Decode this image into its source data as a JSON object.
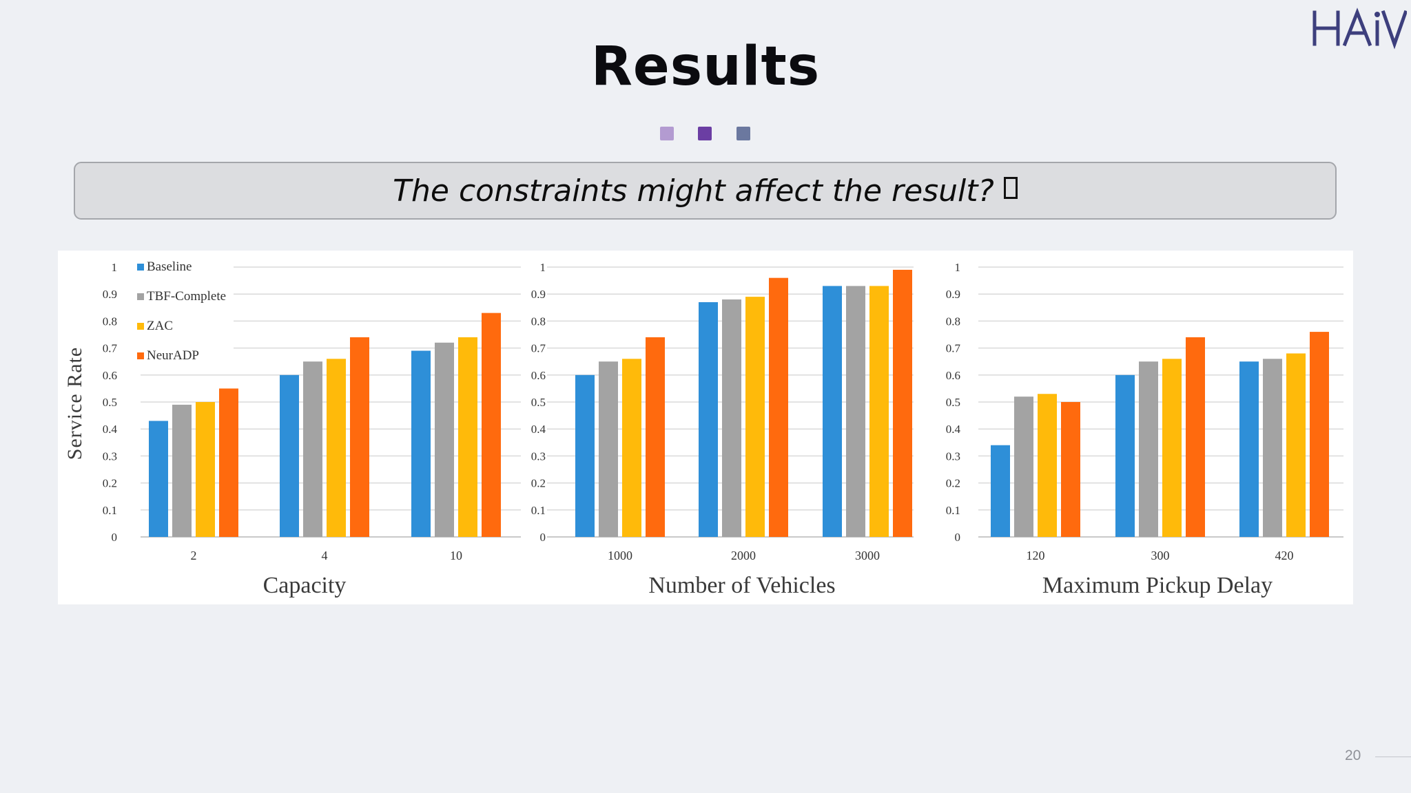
{
  "slide": {
    "logo_text": "HAiV",
    "title": "Results",
    "question": "The constraints might affect the result?",
    "page_number": "20",
    "dot_colors": [
      "#b39bd1",
      "#6b3ea3",
      "#6b789f"
    ]
  },
  "colors": {
    "Baseline": "#2e8fd8",
    "TBF-Complete": "#a3a3a3",
    "ZAC": "#ffba0a",
    "NeurADP": "#ff6a0e",
    "grid": "#dadada",
    "text": "#333333"
  },
  "chart_data": [
    {
      "type": "bar",
      "categories": [
        "2",
        "4",
        "10"
      ],
      "series": [
        {
          "name": "Baseline",
          "values": [
            0.43,
            0.6,
            0.69
          ]
        },
        {
          "name": "TBF-Complete",
          "values": [
            0.49,
            0.65,
            0.72
          ]
        },
        {
          "name": "ZAC",
          "values": [
            0.5,
            0.66,
            0.74
          ]
        },
        {
          "name": "NeurADP",
          "values": [
            0.55,
            0.74,
            0.83
          ]
        }
      ],
      "xlabel": "Capacity",
      "ylabel": "Service Rate",
      "ylim": [
        0,
        1
      ],
      "yticks": [
        "0",
        "0.1",
        "0.2",
        "0.3",
        "0.4",
        "0.5",
        "0.6",
        "0.7",
        "0.8",
        "0.9",
        "1"
      ],
      "grid": true,
      "legend": "top-left"
    },
    {
      "type": "bar",
      "categories": [
        "1000",
        "2000",
        "3000"
      ],
      "series": [
        {
          "name": "Baseline",
          "values": [
            0.6,
            0.87,
            0.93
          ]
        },
        {
          "name": "TBF-Complete",
          "values": [
            0.65,
            0.88,
            0.93
          ]
        },
        {
          "name": "ZAC",
          "values": [
            0.66,
            0.89,
            0.93
          ]
        },
        {
          "name": "NeurADP",
          "values": [
            0.74,
            0.96,
            0.99
          ]
        }
      ],
      "xlabel": "Number of Vehicles",
      "ylim": [
        0,
        1
      ],
      "yticks": [
        "0",
        "0.1",
        "0.2",
        "0.3",
        "0.4",
        "0.5",
        "0.6",
        "0.7",
        "0.8",
        "0.9",
        "1"
      ],
      "grid": true
    },
    {
      "type": "bar",
      "categories": [
        "120",
        "300",
        "420"
      ],
      "series": [
        {
          "name": "Baseline",
          "values": [
            0.34,
            0.6,
            0.65
          ]
        },
        {
          "name": "TBF-Complete",
          "values": [
            0.52,
            0.65,
            0.66
          ]
        },
        {
          "name": "ZAC",
          "values": [
            0.53,
            0.66,
            0.68
          ]
        },
        {
          "name": "NeurADP",
          "values": [
            0.5,
            0.74,
            0.76
          ]
        }
      ],
      "xlabel": "Maximum Pickup Delay",
      "ylim": [
        0,
        1
      ],
      "yticks": [
        "0",
        "0.1",
        "0.2",
        "0.3",
        "0.4",
        "0.5",
        "0.6",
        "0.7",
        "0.8",
        "0.9",
        "1"
      ],
      "grid": true
    }
  ]
}
